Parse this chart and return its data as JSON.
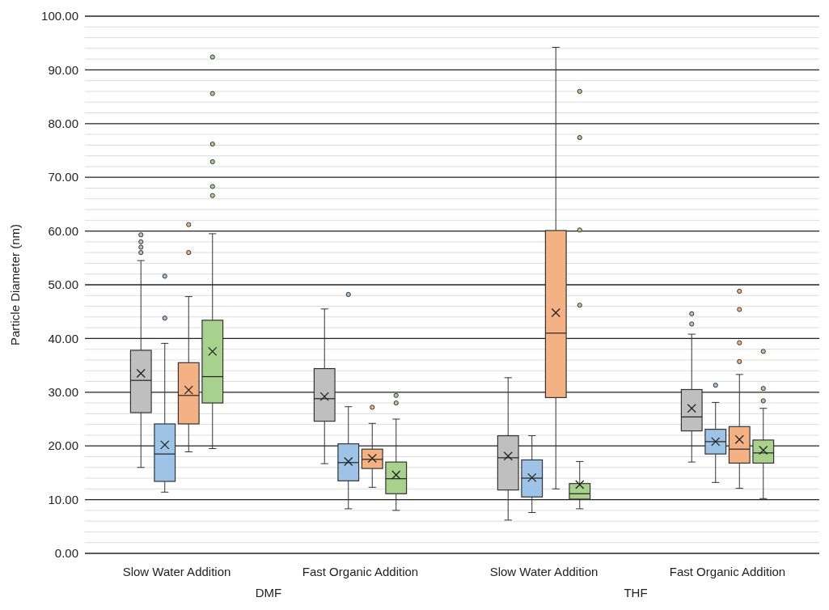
{
  "chart_data": {
    "type": "box",
    "ylabel": "Particle Diameter (nm)",
    "categories": [
      "Slow Water Addition",
      "Fast Organic Addition",
      "Slow Water Addition",
      "Fast Organic Addition"
    ],
    "annotations": [
      "DMF",
      "THF"
    ],
    "ylim": [
      0,
      100
    ],
    "yticks": [
      {
        "value": 0,
        "label": "0.00"
      },
      {
        "value": 10,
        "label": "10.00"
      },
      {
        "value": 20,
        "label": "20.00"
      },
      {
        "value": 30,
        "label": "30.00"
      },
      {
        "value": 40,
        "label": "40.00"
      },
      {
        "value": 50,
        "label": "50.00"
      },
      {
        "value": 60,
        "label": "60.00"
      },
      {
        "value": 70,
        "label": "70.00"
      },
      {
        "value": 80,
        "label": "80.00"
      },
      {
        "value": 90,
        "label": "90.00"
      },
      {
        "value": 100,
        "label": "100.00"
      }
    ],
    "grid": "y",
    "series": [
      {
        "color": "#bfbfbf",
        "boxes": [
          {
            "low": 16,
            "q1": 26.2,
            "median": 32.2,
            "q3": 37.8,
            "high": 54.5,
            "mean": 33.5,
            "outliers": [
              56,
              57,
              58,
              59.3
            ]
          },
          {
            "low": 16.7,
            "q1": 24.6,
            "median": 28.8,
            "q3": 34.4,
            "high": 45.5,
            "mean": 29.2
          },
          {
            "low": 6.2,
            "q1": 11.8,
            "median": 17.8,
            "q3": 21.9,
            "high": 32.7,
            "mean": 18.1
          },
          {
            "low": 17,
            "q1": 22.8,
            "median": 25.4,
            "q3": 30.5,
            "high": 40.8,
            "mean": 27,
            "outliers": [
              42.7,
              44.6
            ]
          }
        ]
      },
      {
        "color": "#9dc3e6",
        "boxes": [
          {
            "low": 11.4,
            "q1": 13.4,
            "median": 18.5,
            "q3": 24.1,
            "high": 39.1,
            "mean": 20.2,
            "outliers": [
              43.8,
              51.6
            ]
          },
          {
            "low": 8.3,
            "q1": 13.5,
            "median": 16.9,
            "q3": 20.4,
            "high": 27.3,
            "mean": 17.1,
            "outliers": [
              48.2
            ]
          },
          {
            "low": 7.6,
            "q1": 10.5,
            "median": 14,
            "q3": 17.4,
            "high": 21.9,
            "mean": 14.1
          },
          {
            "low": 13.2,
            "q1": 18.5,
            "median": 20.8,
            "q3": 23.1,
            "high": 28.1,
            "mean": 20.8,
            "outliers": [
              31.3
            ]
          }
        ]
      },
      {
        "color": "#f4b183",
        "boxes": [
          {
            "low": 18.9,
            "q1": 24.1,
            "median": 29.4,
            "q3": 35.5,
            "high": 47.8,
            "mean": 30.4,
            "outliers": [
              56,
              61.2
            ]
          },
          {
            "low": 12.3,
            "q1": 15.8,
            "median": 17.5,
            "q3": 19.4,
            "high": 24.2,
            "mean": 17.7,
            "outliers": [
              27.2
            ]
          },
          {
            "low": 12,
            "q1": 29,
            "median": 41,
            "q3": 60.1,
            "high": 94.2,
            "mean": 44.8
          },
          {
            "low": 12.1,
            "q1": 16.8,
            "median": 19.4,
            "q3": 23.6,
            "high": 33.3,
            "mean": 21.2,
            "outliers": [
              35.7,
              39.2,
              45.4,
              48.8
            ]
          }
        ]
      },
      {
        "color": "#a9d18e",
        "boxes": [
          {
            "low": 19.5,
            "q1": 28,
            "median": 32.9,
            "q3": 43.4,
            "high": 59.5,
            "mean": 37.6,
            "outliers": [
              66.6,
              68.3,
              72.9,
              76.2,
              85.6,
              92.4
            ]
          },
          {
            "low": 8,
            "q1": 11.1,
            "median": 13.9,
            "q3": 17,
            "high": 25,
            "mean": 14.6,
            "outliers": [
              28,
              29.4
            ]
          },
          {
            "low": 8.3,
            "q1": 10.1,
            "median": 11.1,
            "q3": 13,
            "high": 17.1,
            "mean": 12.8,
            "outliers": [
              46.2,
              60.2,
              77.4,
              86
            ]
          },
          {
            "low": 10.2,
            "q1": 16.8,
            "median": 18.7,
            "q3": 21.1,
            "high": 27,
            "mean": 19.2,
            "outliers": [
              28.4,
              30.7,
              37.6
            ]
          }
        ]
      }
    ]
  }
}
